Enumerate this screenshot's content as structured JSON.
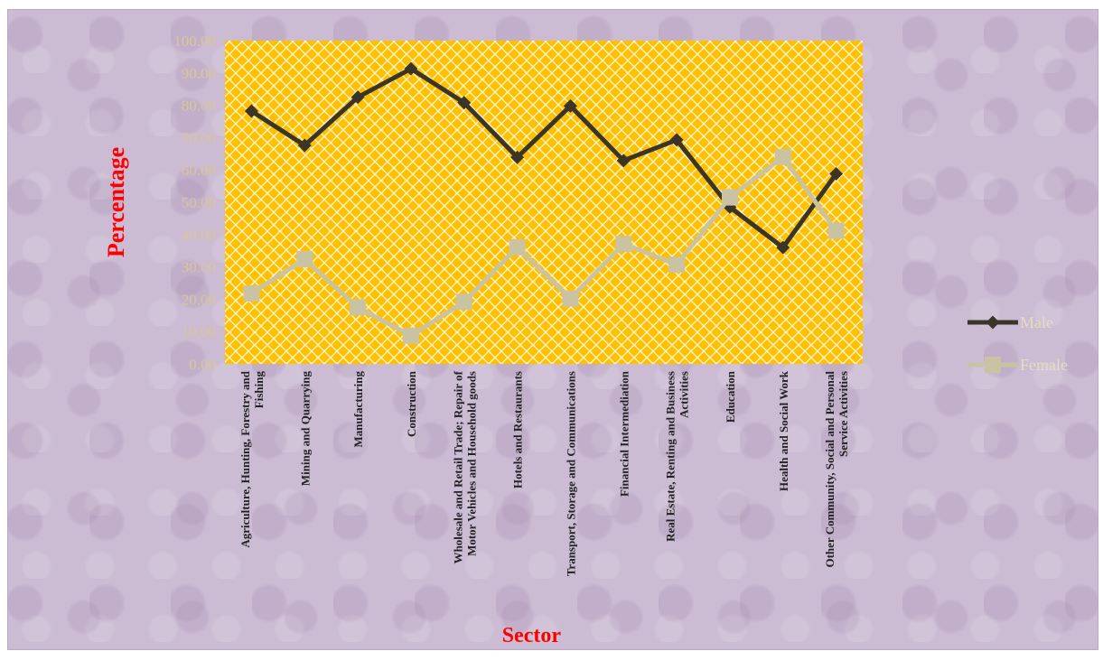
{
  "chart_data": {
    "type": "line",
    "title": "",
    "xlabel": "Sector",
    "ylabel": "Percentage",
    "ylim": [
      0,
      100
    ],
    "ytick_labels": [
      "0.00",
      "10.00",
      "20.00",
      "30.00",
      "40.00",
      "50.00",
      "60.00",
      "70.00",
      "80.00",
      "90.00",
      "100.00"
    ],
    "categories": [
      [
        "Agriculture, Hunting, Forestry and",
        "Fishing"
      ],
      [
        "Mining and Quarrying"
      ],
      [
        "Manufacturing"
      ],
      [
        "Construction"
      ],
      [
        "Wholesale and Retail Trade; Repair of",
        "Motor Vehicles and Household goods"
      ],
      [
        "Hotels and Restaurants"
      ],
      [
        "Transport, Storage and Communications"
      ],
      [
        "Financial Intermediation"
      ],
      [
        "Real Estate, Renting and Business",
        "Activities"
      ],
      [
        "Education"
      ],
      [
        "Health and Social Work"
      ],
      [
        "Other Community, Social and Personal",
        "Service Activities"
      ]
    ],
    "series": [
      {
        "name": "Male",
        "color": "#3b3527",
        "marker": "diamond",
        "values": [
          78.2,
          67.6,
          82.5,
          91.3,
          80.8,
          63.9,
          79.8,
          62.9,
          69.3,
          48.5,
          36.0,
          58.8
        ]
      },
      {
        "name": "Female",
        "color": "#c9c3a3",
        "marker": "square",
        "values": [
          21.8,
          32.4,
          17.5,
          8.7,
          19.2,
          36.1,
          20.2,
          37.1,
          30.7,
          51.5,
          64.0,
          41.2
        ]
      }
    ],
    "grid": false,
    "legend": "right",
    "plot_fill": "#ffc000"
  }
}
